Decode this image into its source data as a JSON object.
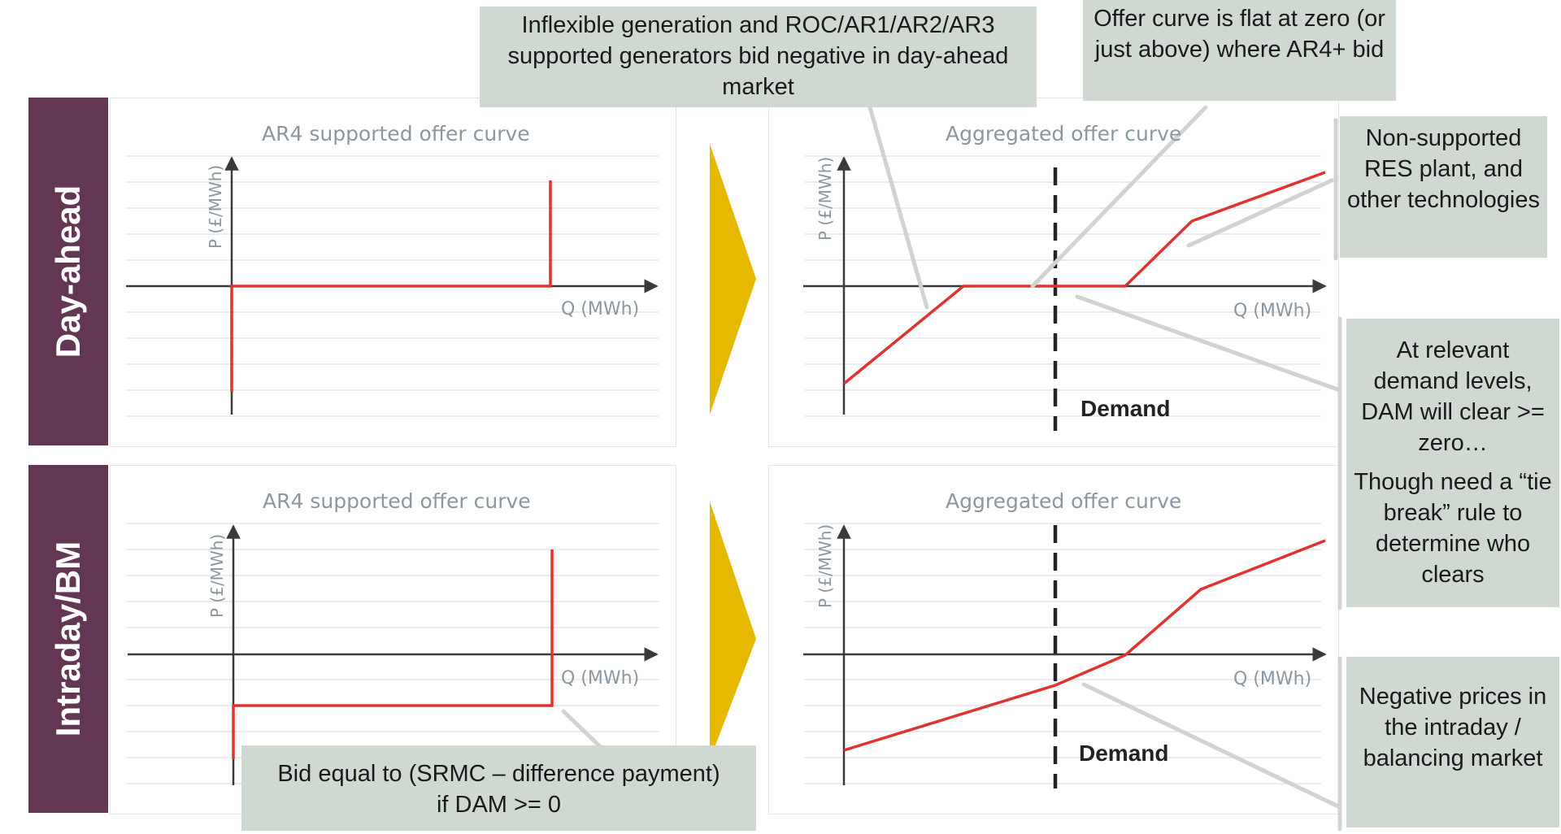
{
  "rows": {
    "day_ahead": "Day-ahead",
    "intraday_bm": "Intraday/BM"
  },
  "panels": {
    "tl": {
      "title": "AR4 supported offer curve",
      "ylabel": "P (£/MWh)",
      "xlabel": "Q (MWh)"
    },
    "tr": {
      "title": "Aggregated offer curve",
      "ylabel": "P (£/MWh)",
      "xlabel": "Q (MWh)",
      "demand": "Demand"
    },
    "bl": {
      "title": "AR4 supported offer curve",
      "ylabel": "P (£/MWh)",
      "xlabel": "Q (MWh)"
    },
    "br": {
      "title": "Aggregated offer curve",
      "ylabel": "P (£/MWh)",
      "xlabel": "Q (MWh)",
      "demand": "Demand"
    }
  },
  "callouts": {
    "inflexible": "Inflexible generation and ROC/AR1/AR2/AR3 supported generators bid negative in day-ahead market",
    "flat": "Offer curve is flat at zero (or just above) where AR4+ bid",
    "nonsupported": "Non-supported RES plant, and other technologies",
    "relevant": "At relevant demand levels, DAM will clear >= zero…",
    "tiebreak": "Though need a “tie break” rule to determine who clears",
    "bid": "Bid equal to (SRMC – difference payment) if DAM >= 0",
    "negative": "Negative prices in the intraday / balancing market"
  },
  "colors": {
    "row_label_bg": "#633753",
    "callout_bg": "#cfd9d2",
    "curve": "#e0332f",
    "arrow": "#e6b800",
    "axis": "#3a3a3a",
    "grid": "#e6e6e6"
  },
  "icons": {
    "arrow_top": "chevron-right-arrow",
    "arrow_bottom": "chevron-right-arrow"
  }
}
